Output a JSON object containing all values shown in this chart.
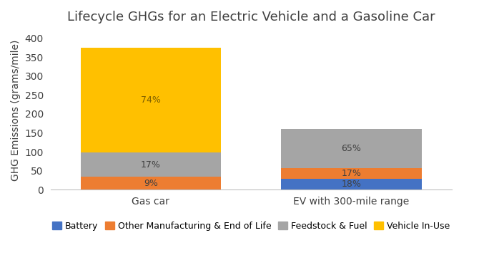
{
  "title": "Lifecycle GHGs for an Electric Vehicle and a Gasoline Car",
  "ylabel": "GHG Emissions (grams/mile)",
  "categories": [
    "Gas car",
    "EV with 300-mile range"
  ],
  "segments": {
    "Battery": {
      "values": [
        0,
        28.8
      ],
      "color": "#4472C4"
    },
    "Other Manufacturing & End of Life": {
      "values": [
        33.75,
        27.2
      ],
      "color": "#ED7D31"
    },
    "Feedstock & Fuel": {
      "values": [
        63.75,
        104.0
      ],
      "color": "#A5A5A5"
    },
    "Vehicle In-Use": {
      "values": [
        277.5,
        0
      ],
      "color": "#FFC000"
    }
  },
  "percentages": {
    "Gas car": {
      "Battery": null,
      "Other Manufacturing & End of Life": "9%",
      "Feedstock & Fuel": "17%",
      "Vehicle In-Use": "74%"
    },
    "EV with 300-mile range": {
      "Battery": "18%",
      "Other Manufacturing & End of Life": "17%",
      "Feedstock & Fuel": "65%",
      "Vehicle In-Use": null
    }
  },
  "pct_colors": {
    "Gas car": {
      "Battery": "#404040",
      "Other Manufacturing & End of Life": "#404040",
      "Feedstock & Fuel": "#404040",
      "Vehicle In-Use": "#7F6000"
    },
    "EV with 300-mile range": {
      "Battery": "#404040",
      "Other Manufacturing & End of Life": "#404040",
      "Feedstock & Fuel": "#404040",
      "Vehicle In-Use": "#404040"
    }
  },
  "ylim": [
    0,
    420
  ],
  "yticks": [
    0,
    50,
    100,
    150,
    200,
    250,
    300,
    350,
    400
  ],
  "bar_width": 0.35,
  "x_positions": [
    0.25,
    0.75
  ],
  "xlim": [
    0.0,
    1.0
  ],
  "background_color": "#ffffff",
  "title_fontsize": 13,
  "legend_fontsize": 9,
  "axis_fontsize": 10,
  "tick_fontsize": 10
}
